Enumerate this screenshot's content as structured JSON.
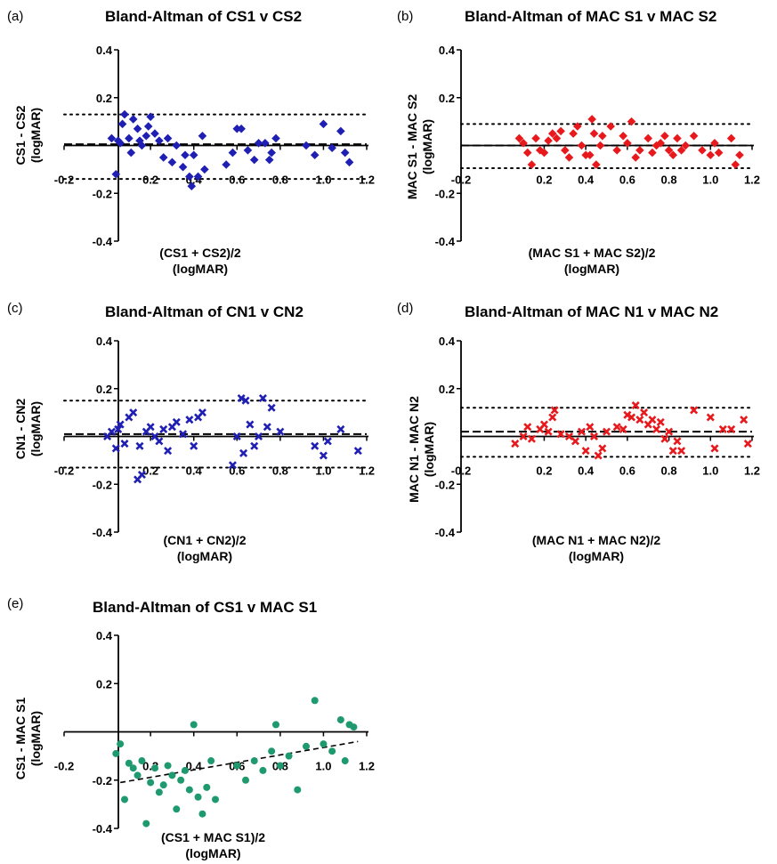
{
  "chart_data": [
    {
      "id": "a",
      "type": "scatter",
      "panel_label": "(a)",
      "title": "Bland-Altman of CS1 v CS2",
      "ylabel_line1": "CS1 - CS2",
      "ylabel_line2": "(logMAR)",
      "xlabel_line1": "(CS1 + CS2)/2",
      "xlabel_line2": "(logMAR)",
      "xlim": [
        -0.2,
        1.2
      ],
      "ylim": [
        -0.4,
        0.4
      ],
      "xticks": [
        "-0.2",
        "0.2",
        "0.4",
        "0.6",
        "0.8",
        "1.0",
        "1.2"
      ],
      "yticks": [
        "0.4",
        "0.2",
        "-0.2",
        "-0.4"
      ],
      "marker": "diamond",
      "color": "#1f1fb4",
      "mean_bias": 0.005,
      "loa_upper": 0.13,
      "loa_lower": -0.14,
      "x": [
        0.02,
        0.04,
        0.05,
        0.06,
        0.07,
        0.08,
        0.1,
        0.11,
        0.12,
        0.14,
        0.15,
        0.16,
        0.18,
        0.19,
        0.2,
        0.22,
        0.24,
        0.26,
        0.28,
        0.3,
        0.32,
        0.35,
        0.36,
        0.38,
        0.39,
        0.4,
        0.42,
        0.44,
        0.45,
        0.55,
        0.58,
        0.6,
        0.62,
        0.65,
        0.68,
        0.7,
        0.73,
        0.75,
        0.76,
        0.78,
        0.92,
        0.96,
        1.0,
        1.04,
        1.08,
        1.1,
        1.12
      ],
      "y": [
        0.03,
        -0.12,
        0.02,
        0.01,
        0.09,
        0.13,
        0.03,
        -0.03,
        0.11,
        0.07,
        0.02,
        0.0,
        0.04,
        0.08,
        0.12,
        0.05,
        0.02,
        -0.05,
        0.03,
        -0.07,
        0.0,
        -0.09,
        -0.04,
        -0.13,
        -0.17,
        -0.04,
        -0.13,
        0.04,
        -0.1,
        -0.08,
        -0.03,
        0.07,
        0.07,
        -0.02,
        -0.06,
        0.01,
        0.01,
        -0.06,
        -0.03,
        0.03,
        0.0,
        -0.04,
        0.09,
        -0.01,
        0.06,
        -0.03,
        -0.07
      ]
    },
    {
      "id": "b",
      "type": "scatter",
      "panel_label": "(b)",
      "title": "Bland-Altman of MAC S1 v MAC S2",
      "ylabel_line1": "MAC S1 - MAC S2",
      "ylabel_line2": "(logMAR)",
      "xlabel_line1": "(MAC S1 + MAC S2)/2",
      "xlabel_line2": "(logMAR)",
      "xlim": [
        -0.2,
        1.2
      ],
      "ylim": [
        -0.4,
        0.4
      ],
      "xticks": [
        "-0.2",
        "0.2",
        "0.4",
        "0.6",
        "0.8",
        "1.0",
        "1.2"
      ],
      "yticks": [
        "0.4",
        "0.2",
        "-0.2",
        "-0.4"
      ],
      "marker": "diamond",
      "color": "#e8191c",
      "mean_bias": 0.0,
      "loa_upper": 0.09,
      "loa_lower": -0.095,
      "x": [
        0.08,
        0.1,
        0.12,
        0.14,
        0.16,
        0.18,
        0.2,
        0.22,
        0.24,
        0.26,
        0.28,
        0.3,
        0.32,
        0.34,
        0.36,
        0.38,
        0.4,
        0.42,
        0.43,
        0.44,
        0.45,
        0.47,
        0.48,
        0.52,
        0.55,
        0.58,
        0.6,
        0.62,
        0.64,
        0.66,
        0.7,
        0.72,
        0.74,
        0.76,
        0.78,
        0.8,
        0.82,
        0.84,
        0.86,
        0.88,
        0.92,
        0.96,
        1.0,
        1.02,
        1.04,
        1.1,
        1.12,
        1.14
      ],
      "y": [
        0.03,
        0.01,
        -0.03,
        -0.08,
        0.03,
        -0.02,
        -0.03,
        0.02,
        0.05,
        0.03,
        0.06,
        -0.02,
        -0.05,
        0.05,
        0.08,
        0.0,
        -0.04,
        -0.04,
        0.11,
        0.05,
        -0.08,
        0.0,
        0.04,
        0.08,
        -0.02,
        0.04,
        0.01,
        0.1,
        -0.05,
        -0.02,
        0.03,
        -0.03,
        0.0,
        0.01,
        0.04,
        -0.02,
        -0.04,
        0.03,
        -0.02,
        0.0,
        0.04,
        -0.02,
        -0.04,
        0.01,
        -0.03,
        0.03,
        -0.08,
        -0.04
      ]
    },
    {
      "id": "c",
      "type": "scatter",
      "panel_label": "(c)",
      "title": "Bland-Altman of CN1 v CN2",
      "ylabel_line1": "CN1 - CN2",
      "ylabel_line2": "(logMAR)",
      "xlabel_line1": "(CN1 + CN2)/2",
      "xlabel_line2": "(logMAR)",
      "xlim": [
        -0.2,
        1.2
      ],
      "ylim": [
        -0.4,
        0.4
      ],
      "xticks": [
        "-0.2",
        "0.2",
        "0.4",
        "0.6",
        "0.8",
        "1.0",
        "1.2"
      ],
      "yticks": [
        "0.4",
        "0.2",
        "-0.2",
        "-0.4"
      ],
      "marker": "x",
      "color": "#1f1fb4",
      "mean_bias": 0.01,
      "loa_upper": 0.15,
      "loa_lower": -0.13,
      "x": [
        0.0,
        0.02,
        0.04,
        0.05,
        0.06,
        0.08,
        0.1,
        0.12,
        0.14,
        0.15,
        0.16,
        0.18,
        0.2,
        0.22,
        0.24,
        0.26,
        0.28,
        0.3,
        0.32,
        0.35,
        0.38,
        0.4,
        0.42,
        0.44,
        0.58,
        0.6,
        0.62,
        0.63,
        0.64,
        0.66,
        0.68,
        0.7,
        0.72,
        0.74,
        0.76,
        0.8,
        0.96,
        1.0,
        1.02,
        1.08,
        1.16
      ],
      "y": [
        0.0,
        0.02,
        -0.05,
        0.03,
        0.05,
        -0.03,
        0.08,
        0.1,
        -0.18,
        -0.04,
        -0.16,
        0.02,
        0.04,
        0.0,
        -0.02,
        0.03,
        -0.06,
        0.04,
        0.06,
        0.01,
        0.07,
        -0.04,
        0.08,
        0.1,
        -0.12,
        0.0,
        0.16,
        -0.07,
        0.15,
        0.05,
        -0.04,
        0.0,
        0.16,
        0.04,
        0.12,
        0.02,
        -0.04,
        -0.08,
        -0.02,
        0.03,
        -0.06
      ]
    },
    {
      "id": "d",
      "type": "scatter",
      "panel_label": "(d)",
      "title": "Bland-Altman of MAC N1 v MAC N2",
      "ylabel_line1": "MAC N1 - MAC N2",
      "ylabel_line2": "(logMAR)",
      "xlabel_line1": "(MAC N1 + MAC N2)/2",
      "xlabel_line2": "(logMAR)",
      "xlim": [
        -0.2,
        1.2
      ],
      "ylim": [
        -0.4,
        0.4
      ],
      "xticks": [
        "-0.2",
        "0.2",
        "0.4",
        "0.6",
        "0.8",
        "1.0",
        "1.2"
      ],
      "yticks": [
        "0.4",
        "0.2",
        "-0.2",
        "-0.4"
      ],
      "marker": "x",
      "color": "#e8191c",
      "mean_bias": 0.02,
      "loa_upper": 0.12,
      "loa_lower": -0.085,
      "x": [
        0.06,
        0.1,
        0.12,
        0.14,
        0.18,
        0.2,
        0.22,
        0.24,
        0.25,
        0.28,
        0.32,
        0.35,
        0.38,
        0.4,
        0.42,
        0.44,
        0.46,
        0.48,
        0.5,
        0.55,
        0.58,
        0.6,
        0.62,
        0.64,
        0.66,
        0.68,
        0.7,
        0.72,
        0.74,
        0.76,
        0.78,
        0.8,
        0.82,
        0.84,
        0.86,
        0.92,
        1.0,
        1.02,
        1.06,
        1.1,
        1.16,
        1.18
      ],
      "y": [
        -0.03,
        0.0,
        0.04,
        -0.01,
        0.03,
        0.05,
        0.02,
        0.08,
        0.11,
        0.01,
        0.0,
        -0.02,
        0.02,
        -0.06,
        0.04,
        0.0,
        -0.08,
        -0.05,
        0.02,
        0.04,
        0.03,
        0.09,
        0.08,
        0.13,
        0.07,
        0.1,
        0.05,
        0.07,
        0.03,
        0.06,
        -0.01,
        0.02,
        -0.06,
        -0.02,
        -0.06,
        0.11,
        0.08,
        -0.05,
        0.03,
        0.03,
        0.07,
        -0.03
      ]
    },
    {
      "id": "e",
      "type": "scatter",
      "panel_label": "(e)",
      "title": "Bland-Altman of CS1 v MAC S1",
      "ylabel_line1": "CS1 - MAC S1",
      "ylabel_line2": "(logMAR)",
      "xlabel_line1": "(CS1 + MAC S1)/2",
      "xlabel_line2": "(logMAR)",
      "xlim": [
        -0.2,
        1.2
      ],
      "ylim": [
        -0.4,
        0.4
      ],
      "xticks": [
        "-0.2",
        "0.2",
        "0.4",
        "0.6",
        "0.8",
        "1.0",
        "1.2"
      ],
      "yticks": [
        "0.4",
        "0.2",
        "-0.2",
        "-0.4"
      ],
      "marker": "circle",
      "color": "#1e9a6e",
      "trend_line": [
        [
          0.06,
          -0.21
        ],
        [
          1.16,
          -0.04
        ]
      ],
      "x": [
        0.04,
        0.06,
        0.08,
        0.1,
        0.12,
        0.14,
        0.16,
        0.18,
        0.2,
        0.22,
        0.24,
        0.26,
        0.28,
        0.3,
        0.32,
        0.34,
        0.36,
        0.38,
        0.4,
        0.42,
        0.44,
        0.46,
        0.48,
        0.5,
        0.6,
        0.64,
        0.68,
        0.72,
        0.76,
        0.78,
        0.8,
        0.84,
        0.88,
        0.92,
        0.96,
        1.0,
        1.04,
        1.08,
        1.1,
        1.12,
        1.14
      ],
      "y": [
        -0.09,
        -0.05,
        -0.28,
        -0.13,
        -0.15,
        -0.18,
        -0.12,
        -0.38,
        -0.21,
        -0.15,
        -0.25,
        -0.22,
        -0.14,
        -0.18,
        -0.32,
        -0.2,
        -0.16,
        -0.24,
        0.03,
        -0.27,
        -0.34,
        -0.23,
        -0.12,
        -0.28,
        -0.14,
        -0.2,
        -0.12,
        -0.16,
        -0.08,
        0.03,
        -0.14,
        -0.1,
        -0.24,
        -0.06,
        0.13,
        -0.05,
        -0.08,
        0.05,
        -0.12,
        0.03,
        0.02
      ]
    }
  ]
}
